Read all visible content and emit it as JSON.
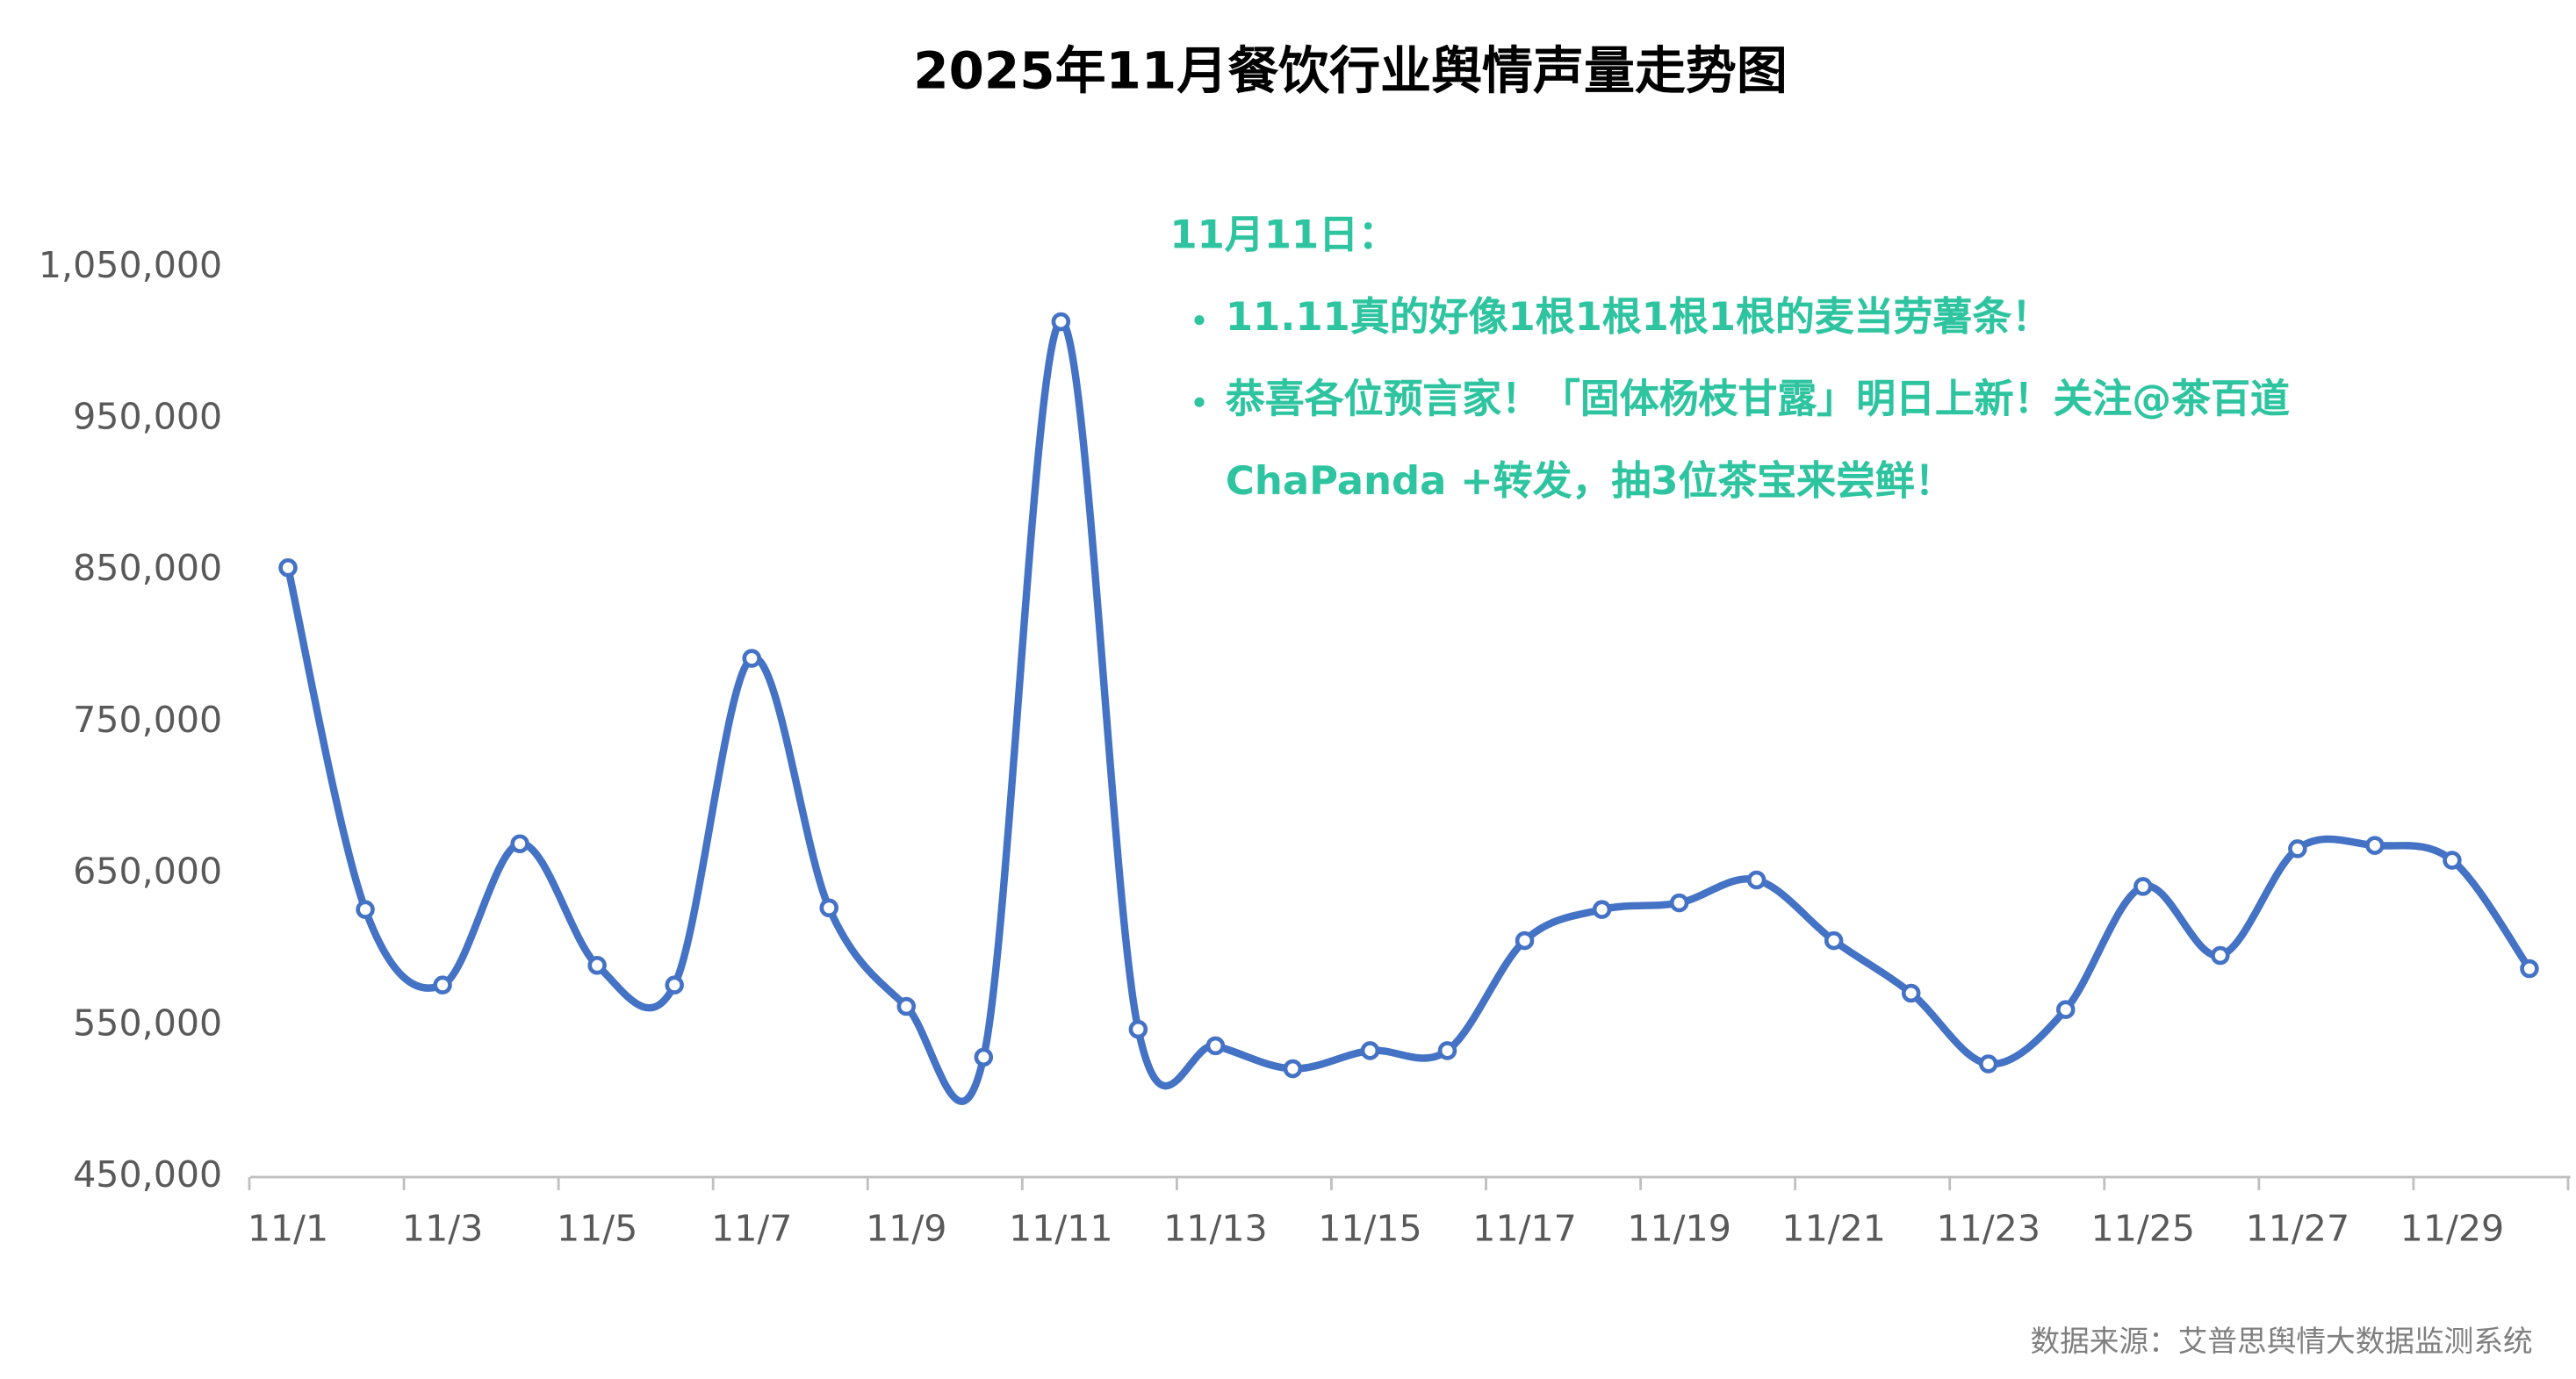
{
  "chart_data": {
    "type": "line",
    "title": "2025年11月餐饮行业舆情声量走势图",
    "categories": [
      "11/1",
      null,
      "11/3",
      null,
      "11/5",
      null,
      "11/7",
      null,
      "11/9",
      null,
      "11/11",
      null,
      "11/13",
      null,
      "11/15",
      null,
      "11/17",
      null,
      "11/19",
      null,
      "11/21",
      null,
      "11/23",
      null,
      "11/25",
      null,
      "11/27",
      null,
      "11/29",
      null
    ],
    "values": [
      852000,
      626500,
      576700,
      669900,
      589700,
      576700,
      792200,
      627600,
      562600,
      529100,
      1014300,
      547500,
      536600,
      521500,
      533400,
      533400,
      606000,
      626500,
      630900,
      646000,
      606000,
      571300,
      524700,
      560500,
      641700,
      596200,
      666600,
      668800,
      659000,
      587500
    ],
    "color": "#4472c4",
    "ylim": [
      450000,
      1050000
    ],
    "yticks": [
      {
        "value": 450000,
        "label": "450,000"
      },
      {
        "value": 550000,
        "label": "550,000"
      },
      {
        "value": 650000,
        "label": "650,000"
      },
      {
        "value": 750000,
        "label": "750,000"
      },
      {
        "value": 850000,
        "label": "850,000"
      },
      {
        "value": 950000,
        "label": "950,000"
      },
      {
        "value": 1050000,
        "label": "1,050,000"
      }
    ],
    "grid": false,
    "annotation": {
      "title": "11月11日：",
      "items": [
        "11.11真的好像1根1根1根1根的麦当劳薯条！",
        "恭喜各位预言家！「固体杨枝甘露」明日上新！关注@茶百道ChaPanda +转发，抽3位茶宝来尝鲜！"
      ],
      "color": "#2ec4a0"
    },
    "source": "数据来源：艾普思舆情大数据监测系统"
  }
}
